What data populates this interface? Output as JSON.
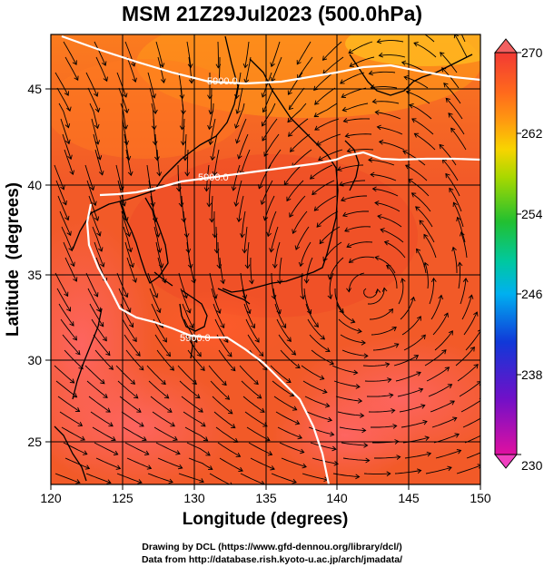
{
  "title": "MSM 21Z29Jul2023 (500.0hPa)",
  "credits": {
    "line1": "Drawing by DCL (https://www.gfd-dennou.org/library/dcl/)",
    "line2": "Data from http://database.rish.kyoto-u.ac.jp/arch/jmadata/"
  },
  "chart_data": {
    "type": "map",
    "title": "MSM 21Z29Jul2023 (500.0hPa)",
    "xlabel": "Longitude (degrees)",
    "ylabel": "Latitude  (degrees)",
    "xlim": [
      120,
      150
    ],
    "ylim": [
      22.4,
      47.6
    ],
    "x_ticks": [
      120,
      125,
      130,
      135,
      140,
      145,
      150
    ],
    "y_ticks": [
      25,
      30,
      35,
      40,
      45
    ],
    "grid": true,
    "field": "temperature",
    "colorbar": {
      "ticks": [
        270,
        262,
        254,
        246,
        238,
        230
      ],
      "range": [
        230,
        270
      ],
      "colors": [
        "#e0109a",
        "#a000c8",
        "#1030d0",
        "#00a0ff",
        "#00d0c0",
        "#20c030",
        "#90d000",
        "#f0e000",
        "#ff9000",
        "#ff5000",
        "#e83030"
      ]
    },
    "contour_labels": [
      "5900.0",
      "5900.0",
      "5900.0"
    ],
    "features": [
      "wind streamlines",
      "coastlines",
      "5900 m geopotential height contour",
      "cyclonic circulation near 142E 33.5N"
    ]
  }
}
